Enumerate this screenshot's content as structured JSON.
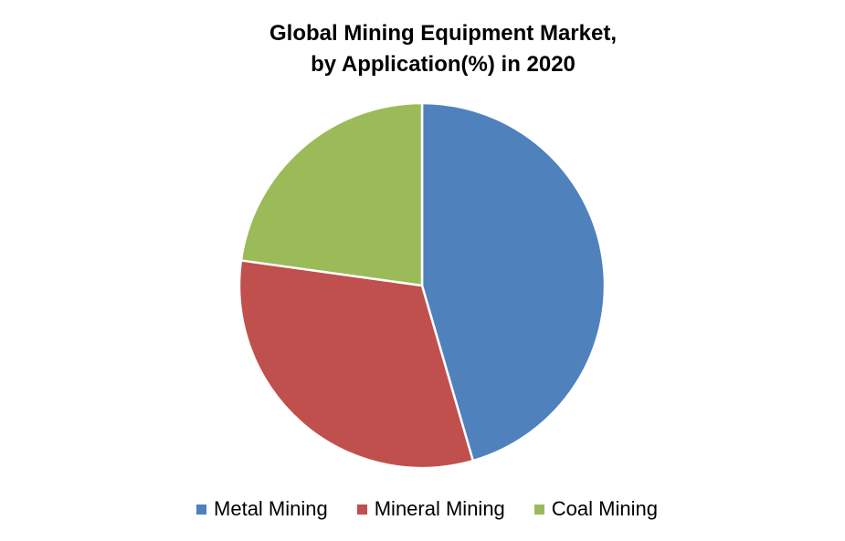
{
  "chart_data": {
    "type": "pie",
    "title": "Global Mining Equipment Market,",
    "subtitle": "by Application(%) in 2020",
    "categories": [
      "Metal Mining",
      "Mineral Mining",
      "Coal Mining"
    ],
    "values": [
      45.5,
      31.7,
      22.8
    ],
    "colors": [
      "#4F81BD",
      "#C0504D",
      "#9BBB59"
    ],
    "legend_position": "bottom"
  }
}
